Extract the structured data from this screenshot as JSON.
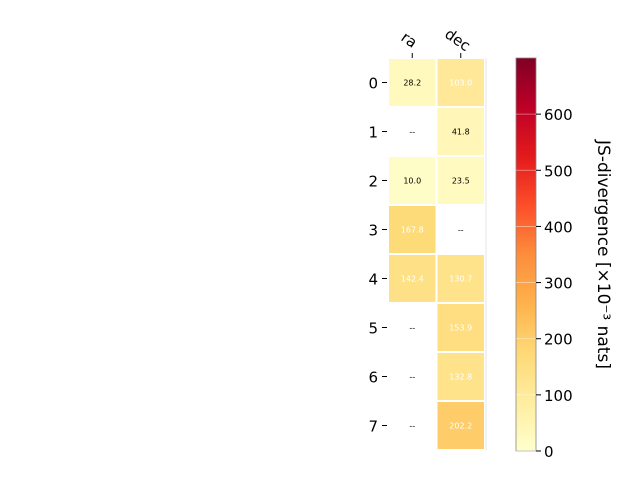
{
  "chart_data": {
    "type": "heatmap",
    "columns": [
      "ra",
      "dec"
    ],
    "rows": [
      "0",
      "1",
      "2",
      "3",
      "4",
      "5",
      "6",
      "7"
    ],
    "values": [
      [
        28.2,
        103.0
      ],
      [
        null,
        41.8
      ],
      [
        10.0,
        23.5
      ],
      [
        167.8,
        null
      ],
      [
        142.4,
        130.7
      ],
      [
        null,
        153.9
      ],
      [
        null,
        132.8
      ],
      [
        null,
        202.2
      ]
    ],
    "cell_labels": [
      [
        "28.2",
        "103.0"
      ],
      [
        "--",
        "41.8"
      ],
      [
        "10.0",
        "23.5"
      ],
      [
        "167.8",
        "--"
      ],
      [
        "142.4",
        "130.7"
      ],
      [
        "--",
        "153.9"
      ],
      [
        "--",
        "132.8"
      ],
      [
        "--",
        "202.2"
      ]
    ],
    "colorbar": {
      "label": "JS-divergence [×10⁻³ nats]",
      "range": [
        0,
        700
      ],
      "ticks": [
        0,
        100,
        200,
        300,
        400,
        500,
        600
      ],
      "colormap": "YlOrRd",
      "colors": [
        "#ffffcc",
        "#ffeda0",
        "#fed976",
        "#feb24c",
        "#fd8d3c",
        "#fc4e2a",
        "#e31a1c",
        "#bd0026",
        "#800026"
      ]
    },
    "label_color_threshold": 100
  }
}
